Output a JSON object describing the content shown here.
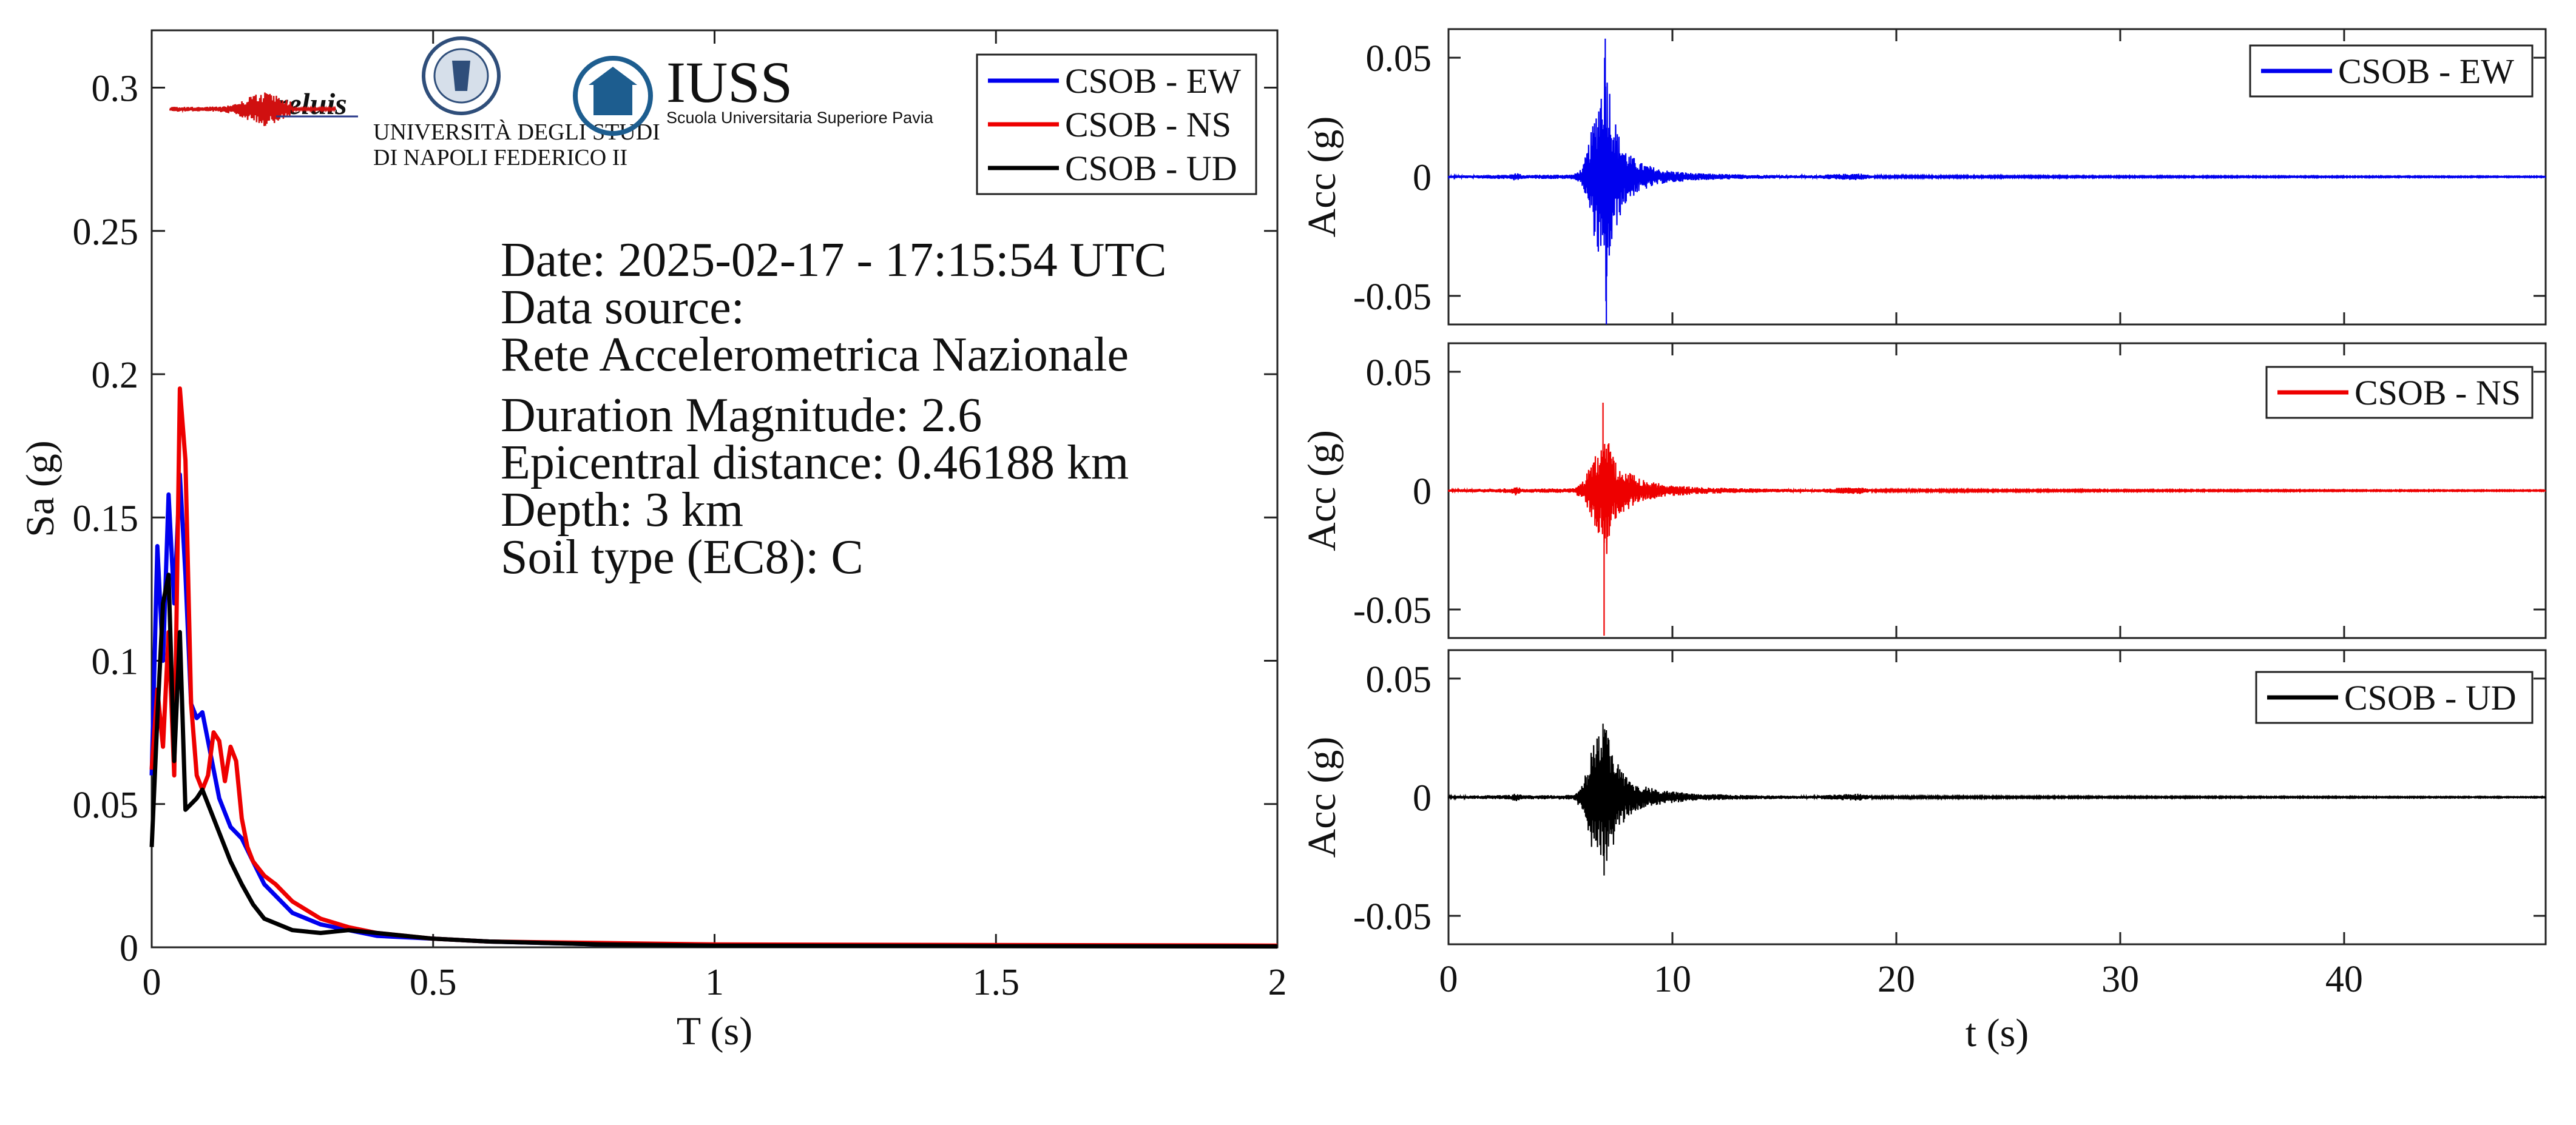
{
  "legend_entries": [
    "CSOB - EW",
    "CSOB - NS",
    "CSOB - UD"
  ],
  "info_lines": [
    "Date: 2025-02-17 - 17:15:54 UTC",
    "Data source:",
    "Rete Accelerometrica Nazionale",
    "Duration Magnitude: 2.6",
    "Epicentral distance: 0.46188 km",
    "Depth: 3 km",
    "Soil type (EC8): C"
  ],
  "logos": {
    "reluis": "reluis",
    "unina_line1": "UNIVERSITÀ DEGLI STUDI",
    "unina_line2": "DI NAPOLI FEDERICO II",
    "iuss": "IUSS",
    "iuss_sub": "Scuola Universitaria Superiore Pavia"
  },
  "colors": {
    "EW": "#0000ee",
    "NS": "#ee0000",
    "UD": "#000000"
  },
  "chart_data": [
    {
      "type": "line",
      "xlabel": "T (s)",
      "ylabel": "Sa (g)",
      "xlim": [
        0,
        2
      ],
      "ylim": [
        0,
        0.32
      ],
      "xticks": [
        0,
        0.5,
        1,
        1.5,
        2
      ],
      "xtick_labels": [
        "0",
        "0.5",
        "1",
        "1.5",
        "2"
      ],
      "yticks": [
        0,
        0.05,
        0.1,
        0.15,
        0.2,
        0.25,
        0.3
      ],
      "ytick_labels": [
        "0",
        "0.05",
        "0.1",
        "0.15",
        "0.2",
        "0.25",
        "0.3"
      ],
      "grid": false,
      "legend": "top-right",
      "series": [
        {
          "name": "CSOB - EW",
          "color": "#0000ee",
          "x": [
            0,
            0.01,
            0.02,
            0.03,
            0.04,
            0.05,
            0.06,
            0.07,
            0.08,
            0.09,
            0.1,
            0.12,
            0.14,
            0.16,
            0.18,
            0.2,
            0.25,
            0.3,
            0.35,
            0.4,
            0.5,
            0.6,
            0.8,
            1.0,
            1.5,
            2.0
          ],
          "y": [
            0.06,
            0.14,
            0.1,
            0.158,
            0.12,
            0.165,
            0.13,
            0.085,
            0.08,
            0.082,
            0.072,
            0.052,
            0.042,
            0.038,
            0.03,
            0.022,
            0.012,
            0.008,
            0.006,
            0.004,
            0.003,
            0.002,
            0.001,
            0.0008,
            0.0005,
            0.0004
          ]
        },
        {
          "name": "CSOB - NS",
          "color": "#ee0000",
          "x": [
            0,
            0.01,
            0.02,
            0.03,
            0.04,
            0.05,
            0.06,
            0.07,
            0.08,
            0.09,
            0.1,
            0.11,
            0.12,
            0.13,
            0.14,
            0.15,
            0.16,
            0.17,
            0.18,
            0.2,
            0.22,
            0.25,
            0.3,
            0.35,
            0.4,
            0.5,
            0.6,
            0.8,
            1.0,
            1.5,
            2.0
          ],
          "y": [
            0.062,
            0.09,
            0.07,
            0.11,
            0.06,
            0.195,
            0.17,
            0.085,
            0.06,
            0.055,
            0.06,
            0.075,
            0.072,
            0.058,
            0.07,
            0.065,
            0.045,
            0.035,
            0.03,
            0.025,
            0.022,
            0.016,
            0.01,
            0.007,
            0.005,
            0.003,
            0.002,
            0.0015,
            0.001,
            0.0008,
            0.0006
          ]
        },
        {
          "name": "CSOB - UD",
          "color": "#000000",
          "x": [
            0,
            0.01,
            0.02,
            0.03,
            0.04,
            0.05,
            0.06,
            0.07,
            0.08,
            0.09,
            0.1,
            0.12,
            0.14,
            0.16,
            0.18,
            0.2,
            0.25,
            0.3,
            0.35,
            0.4,
            0.5,
            0.6,
            0.8,
            1.0,
            1.5,
            2.0
          ],
          "y": [
            0.035,
            0.08,
            0.12,
            0.13,
            0.065,
            0.11,
            0.048,
            0.05,
            0.052,
            0.055,
            0.05,
            0.04,
            0.03,
            0.022,
            0.015,
            0.01,
            0.006,
            0.005,
            0.006,
            0.005,
            0.003,
            0.002,
            0.001,
            0.0006,
            0.0004,
            0.0003
          ]
        }
      ]
    },
    {
      "type": "line",
      "ylabel": "Acc (g)",
      "xlim": [
        0,
        49
      ],
      "ylim": [
        -0.062,
        0.062
      ],
      "yticks": [
        -0.05,
        0,
        0.05
      ],
      "ytick_labels": [
        "-0.05",
        "0",
        "0.05"
      ],
      "grid": false,
      "legend": "top-right",
      "series": [
        {
          "name": "CSOB - EW",
          "color": "#0000ee",
          "envelope": {
            "t": [
              0,
              2.8,
              3.0,
              3.3,
              5.6,
              6.0,
              6.4,
              6.8,
              7.0,
              7.3,
              7.6,
              8.0,
              8.6,
              9.5,
              11,
              13,
              16,
              18.3,
              18.7,
              19,
              30,
              49
            ],
            "amplitude": [
              0.0005,
              0.001,
              0.002,
              0.0008,
              0.001,
              0.004,
              0.02,
              0.04,
              0.058,
              0.03,
              0.018,
              0.01,
              0.006,
              0.003,
              0.0015,
              0.001,
              0.0006,
              0.0015,
              0.001,
              0.0004,
              0.0003,
              0.0002
            ]
          },
          "peaks": [
            {
              "t": 7.0,
              "acc": 0.058
            },
            {
              "t": 7.05,
              "acc": -0.062
            }
          ]
        }
      ]
    },
    {
      "type": "line",
      "ylabel": "Acc (g)",
      "xlim": [
        0,
        49
      ],
      "ylim": [
        -0.062,
        0.062
      ],
      "yticks": [
        -0.05,
        0,
        0.05
      ],
      "ytick_labels": [
        "-0.05",
        "0",
        "0.05"
      ],
      "grid": false,
      "legend": "top-right",
      "series": [
        {
          "name": "CSOB - NS",
          "color": "#ee0000",
          "envelope": {
            "t": [
              0,
              2.8,
              3.0,
              3.3,
              5.6,
              6.0,
              6.4,
              6.8,
              7.0,
              7.3,
              7.6,
              8.0,
              8.6,
              9.5,
              11,
              13,
              16,
              18.3,
              18.7,
              19,
              30,
              49
            ],
            "amplitude": [
              0.0005,
              0.001,
              0.002,
              0.0008,
              0.001,
              0.004,
              0.012,
              0.02,
              0.03,
              0.016,
              0.01,
              0.008,
              0.005,
              0.003,
              0.0015,
              0.001,
              0.0006,
              0.0015,
              0.001,
              0.0004,
              0.0003,
              0.0002
            ]
          },
          "peaks": [
            {
              "t": 6.9,
              "acc": 0.037
            },
            {
              "t": 6.95,
              "acc": -0.061
            }
          ]
        }
      ]
    },
    {
      "type": "line",
      "xlabel": "t (s)",
      "ylabel": "Acc (g)",
      "xlim": [
        0,
        49
      ],
      "ylim": [
        -0.062,
        0.062
      ],
      "xticks": [
        0,
        10,
        20,
        30,
        40
      ],
      "xtick_labels": [
        "0",
        "10",
        "20",
        "30",
        "40"
      ],
      "yticks": [
        -0.05,
        0,
        0.05
      ],
      "ytick_labels": [
        "-0.05",
        "0",
        "0.05"
      ],
      "grid": false,
      "legend": "top-right",
      "series": [
        {
          "name": "CSOB - UD",
          "color": "#000000",
          "envelope": {
            "t": [
              0,
              2.8,
              3.0,
              3.3,
              5.6,
              6.0,
              6.4,
              6.8,
              7.0,
              7.3,
              7.6,
              8.0,
              8.6,
              9.5,
              11,
              13,
              16,
              18.3,
              18.7,
              19,
              30,
              49
            ],
            "amplitude": [
              0.0005,
              0.001,
              0.002,
              0.0008,
              0.001,
              0.006,
              0.022,
              0.028,
              0.03,
              0.022,
              0.014,
              0.008,
              0.005,
              0.003,
              0.0015,
              0.001,
              0.0006,
              0.0015,
              0.001,
              0.0004,
              0.0003,
              0.0002
            ]
          },
          "peaks": [
            {
              "t": 6.9,
              "acc": 0.031
            },
            {
              "t": 6.95,
              "acc": -0.033
            }
          ]
        }
      ]
    }
  ]
}
